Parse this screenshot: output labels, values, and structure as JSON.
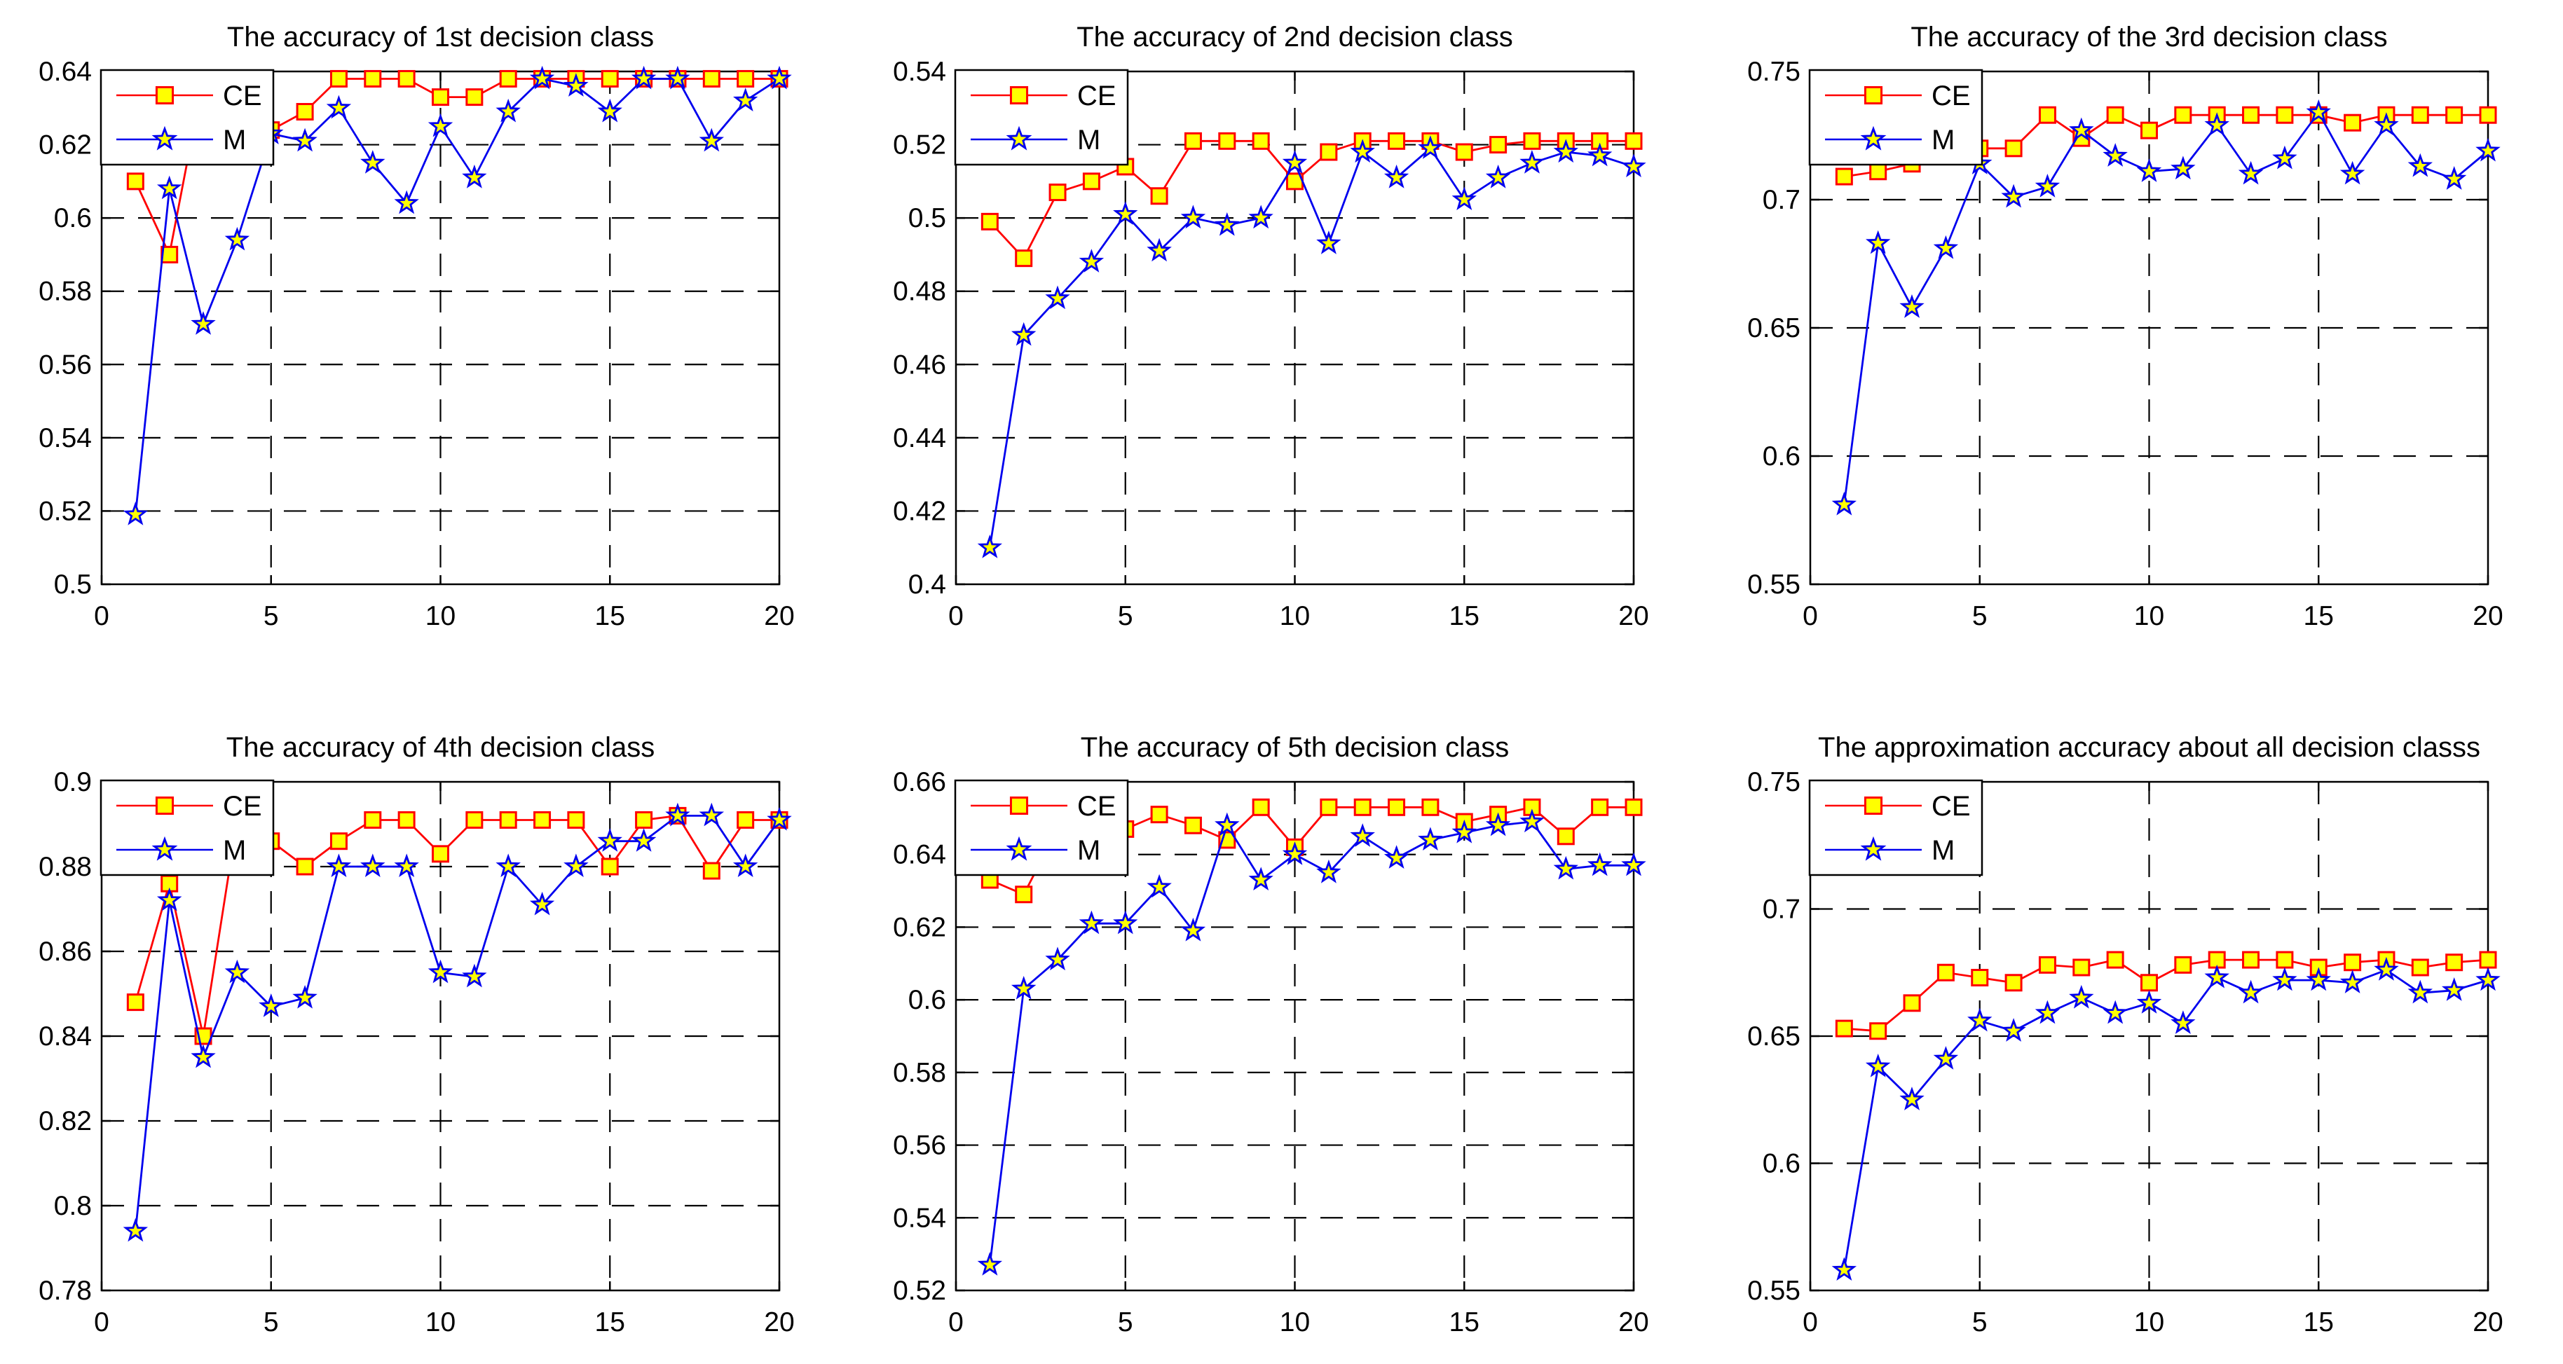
{
  "figure": {
    "background": "#ffffff",
    "axis_color": "#000000",
    "text_color": "#000000",
    "series_styles": {
      "CE": {
        "line_color": "#ff0000",
        "marker": "square",
        "marker_fill": "#ffff00",
        "marker_edge": "#ff0000"
      },
      "M": {
        "line_color": "#0000ee",
        "marker": "star",
        "marker_fill": "#ffff00",
        "marker_edge": "#0000ee"
      }
    },
    "legend": {
      "entries": [
        "CE",
        "M"
      ],
      "position": "top-left",
      "background": "#ffffff",
      "border": "#000000"
    }
  },
  "chart_data": [
    {
      "type": "line",
      "title": "The accuracy of 1st decision class",
      "x": [
        1,
        2,
        3,
        4,
        5,
        6,
        7,
        8,
        9,
        10,
        11,
        12,
        13,
        14,
        15,
        16,
        17,
        18,
        19,
        20
      ],
      "xlim": [
        0,
        20
      ],
      "xticks": [
        "0",
        "5",
        "10",
        "15",
        "20"
      ],
      "ylim": [
        0.5,
        0.64
      ],
      "yticks": [
        "0.5",
        "0.52",
        "0.54",
        "0.56",
        "0.58",
        "0.6",
        "0.62",
        "0.64"
      ],
      "grid": true,
      "legend_position": "top-left",
      "series": [
        {
          "name": "CE",
          "values": [
            0.61,
            0.59,
            0.638,
            0.638,
            0.624,
            0.629,
            0.638,
            0.638,
            0.638,
            0.633,
            0.633,
            0.638,
            0.638,
            0.638,
            0.638,
            0.638,
            0.638,
            0.638,
            0.638,
            0.638
          ]
        },
        {
          "name": "M",
          "values": [
            0.519,
            0.608,
            0.571,
            0.594,
            0.623,
            0.621,
            0.63,
            0.615,
            0.604,
            0.625,
            0.611,
            0.629,
            0.638,
            0.636,
            0.629,
            0.638,
            0.638,
            0.621,
            0.632,
            0.638
          ]
        }
      ]
    },
    {
      "type": "line",
      "title": "The accuracy of 2nd decision class",
      "x": [
        1,
        2,
        3,
        4,
        5,
        6,
        7,
        8,
        9,
        10,
        11,
        12,
        13,
        14,
        15,
        16,
        17,
        18,
        19,
        20
      ],
      "xlim": [
        0,
        20
      ],
      "xticks": [
        "0",
        "5",
        "10",
        "15",
        "20"
      ],
      "ylim": [
        0.4,
        0.54
      ],
      "yticks": [
        "0.4",
        "0.42",
        "0.44",
        "0.46",
        "0.48",
        "0.5",
        "0.52",
        "0.54"
      ],
      "grid": true,
      "legend_position": "top-left",
      "series": [
        {
          "name": "CE",
          "values": [
            0.499,
            0.489,
            0.507,
            0.51,
            0.514,
            0.506,
            0.521,
            0.521,
            0.521,
            0.51,
            0.518,
            0.521,
            0.521,
            0.521,
            0.518,
            0.52,
            0.521,
            0.521,
            0.521,
            0.521
          ]
        },
        {
          "name": "M",
          "values": [
            0.41,
            0.468,
            0.478,
            0.488,
            0.501,
            0.491,
            0.5,
            0.498,
            0.5,
            0.515,
            0.493,
            0.518,
            0.511,
            0.519,
            0.505,
            0.511,
            0.515,
            0.518,
            0.517,
            0.514
          ]
        }
      ]
    },
    {
      "type": "line",
      "title": "The accuracy of the 3rd decision class",
      "x": [
        1,
        2,
        3,
        4,
        5,
        6,
        7,
        8,
        9,
        10,
        11,
        12,
        13,
        14,
        15,
        16,
        17,
        18,
        19,
        20
      ],
      "xlim": [
        0,
        20
      ],
      "xticks": [
        "0",
        "5",
        "10",
        "15",
        "20"
      ],
      "ylim": [
        0.55,
        0.75
      ],
      "yticks": [
        "0.55",
        "0.6",
        "0.65",
        "0.7",
        "0.75"
      ],
      "grid": true,
      "legend_position": "top-left",
      "series": [
        {
          "name": "CE",
          "values": [
            0.709,
            0.711,
            0.714,
            0.717,
            0.72,
            0.72,
            0.733,
            0.724,
            0.733,
            0.727,
            0.733,
            0.733,
            0.733,
            0.733,
            0.733,
            0.73,
            0.733,
            0.733,
            0.733,
            0.733
          ]
        },
        {
          "name": "M",
          "values": [
            0.581,
            0.683,
            0.658,
            0.681,
            0.714,
            0.701,
            0.705,
            0.727,
            0.717,
            0.711,
            0.712,
            0.729,
            0.71,
            0.716,
            0.734,
            0.71,
            0.729,
            0.713,
            0.708,
            0.719
          ]
        }
      ]
    },
    {
      "type": "line",
      "title": "The accuracy of 4th decision class",
      "x": [
        1,
        2,
        3,
        4,
        5,
        6,
        7,
        8,
        9,
        10,
        11,
        12,
        13,
        14,
        15,
        16,
        17,
        18,
        19,
        20
      ],
      "xlim": [
        0,
        20
      ],
      "xticks": [
        "0",
        "5",
        "10",
        "15",
        "20"
      ],
      "ylim": [
        0.78,
        0.9
      ],
      "yticks": [
        "0.78",
        "0.8",
        "0.82",
        "0.84",
        "0.86",
        "0.88",
        "0.9"
      ],
      "grid": true,
      "legend_position": "top-left",
      "series": [
        {
          "name": "CE",
          "values": [
            0.848,
            0.876,
            0.84,
            0.891,
            0.886,
            0.88,
            0.886,
            0.891,
            0.891,
            0.883,
            0.891,
            0.891,
            0.891,
            0.891,
            0.88,
            0.891,
            0.892,
            0.879,
            0.891,
            0.891
          ]
        },
        {
          "name": "M",
          "values": [
            0.794,
            0.872,
            0.835,
            0.855,
            0.847,
            0.849,
            0.88,
            0.88,
            0.88,
            0.855,
            0.854,
            0.88,
            0.871,
            0.88,
            0.886,
            0.886,
            0.892,
            0.892,
            0.88,
            0.891
          ]
        }
      ]
    },
    {
      "type": "line",
      "title": "The accuracy of 5th decision class",
      "x": [
        1,
        2,
        3,
        4,
        5,
        6,
        7,
        8,
        9,
        10,
        11,
        12,
        13,
        14,
        15,
        16,
        17,
        18,
        19,
        20
      ],
      "xlim": [
        0,
        20
      ],
      "xticks": [
        "0",
        "5",
        "10",
        "15",
        "20"
      ],
      "ylim": [
        0.52,
        0.66
      ],
      "yticks": [
        "0.52",
        "0.54",
        "0.56",
        "0.58",
        "0.6",
        "0.62",
        "0.64",
        "0.66"
      ],
      "grid": true,
      "legend_position": "top-left",
      "series": [
        {
          "name": "CE",
          "values": [
            0.633,
            0.629,
            0.647,
            0.647,
            0.647,
            0.651,
            0.648,
            0.644,
            0.653,
            0.642,
            0.653,
            0.653,
            0.653,
            0.653,
            0.649,
            0.651,
            0.653,
            0.645,
            0.653,
            0.653
          ]
        },
        {
          "name": "M",
          "values": [
            0.527,
            0.603,
            0.611,
            0.621,
            0.621,
            0.631,
            0.619,
            0.648,
            0.633,
            0.64,
            0.635,
            0.645,
            0.639,
            0.644,
            0.646,
            0.648,
            0.649,
            0.636,
            0.637,
            0.637
          ]
        }
      ]
    },
    {
      "type": "line",
      "title": "The approximation accuracy about all decision classs",
      "x": [
        1,
        2,
        3,
        4,
        5,
        6,
        7,
        8,
        9,
        10,
        11,
        12,
        13,
        14,
        15,
        16,
        17,
        18,
        19,
        20
      ],
      "xlim": [
        0,
        20
      ],
      "xticks": [
        "0",
        "5",
        "10",
        "15",
        "20"
      ],
      "ylim": [
        0.55,
        0.75
      ],
      "yticks": [
        "0.55",
        "0.6",
        "0.65",
        "0.7",
        "0.75"
      ],
      "grid": true,
      "legend_position": "top-left",
      "series": [
        {
          "name": "CE",
          "values": [
            0.653,
            0.652,
            0.663,
            0.675,
            0.673,
            0.671,
            0.678,
            0.677,
            0.68,
            0.671,
            0.678,
            0.68,
            0.68,
            0.68,
            0.677,
            0.679,
            0.68,
            0.677,
            0.679,
            0.68
          ]
        },
        {
          "name": "M",
          "values": [
            0.558,
            0.638,
            0.625,
            0.641,
            0.656,
            0.652,
            0.659,
            0.665,
            0.659,
            0.663,
            0.655,
            0.673,
            0.667,
            0.672,
            0.672,
            0.671,
            0.676,
            0.667,
            0.668,
            0.672
          ]
        }
      ]
    }
  ]
}
